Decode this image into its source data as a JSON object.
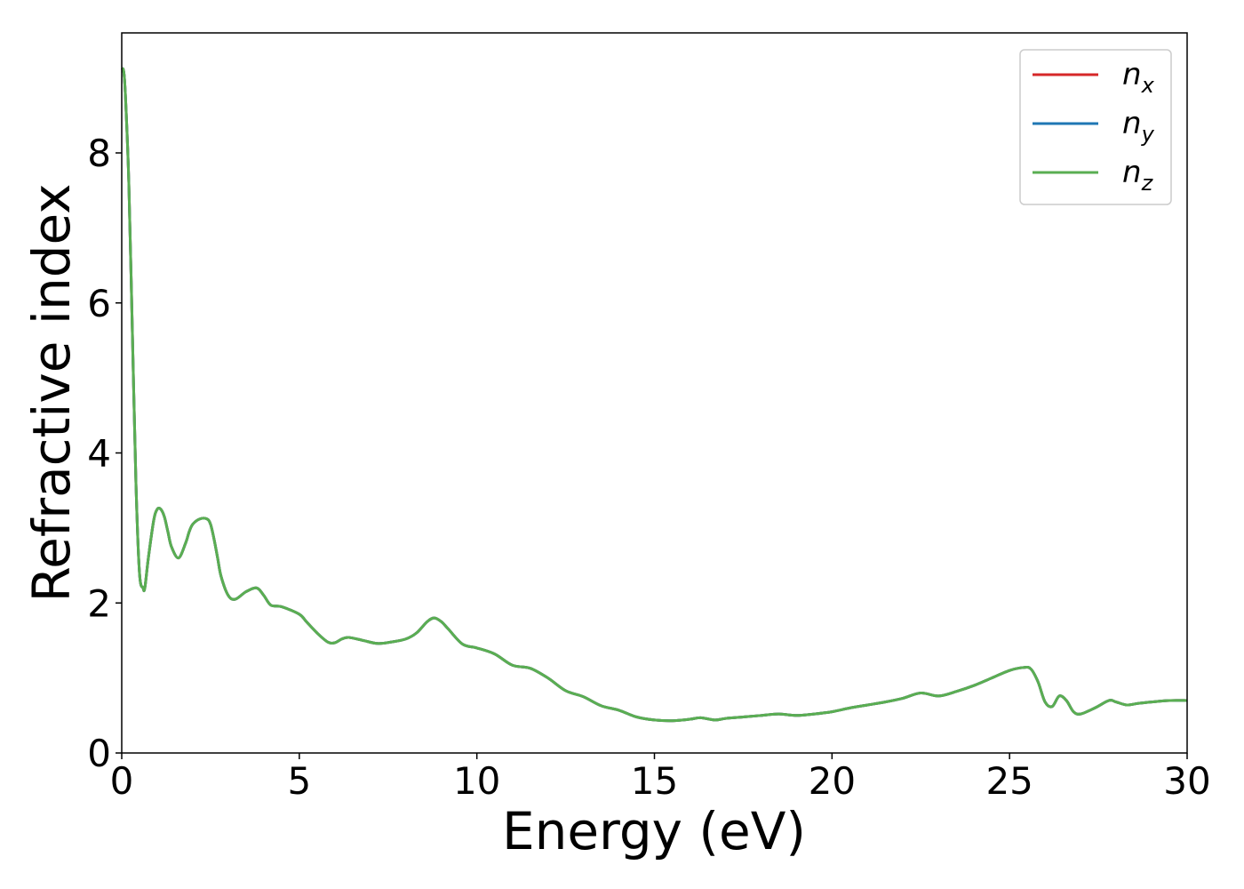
{
  "chart_data": {
    "type": "line",
    "xlabel": "Energy (eV)",
    "ylabel": "Refractive index",
    "xlim": [
      0,
      30
    ],
    "ylim": [
      0,
      9.6
    ],
    "xticks": [
      0,
      5,
      10,
      15,
      20,
      25,
      30
    ],
    "yticks": [
      0,
      2,
      4,
      6,
      8
    ],
    "grid": false,
    "legend_position": "top-right",
    "x": [
      0.0,
      0.05,
      0.1,
      0.2,
      0.3,
      0.4,
      0.5,
      0.6,
      0.65,
      0.75,
      0.9,
      1.0,
      1.1,
      1.2,
      1.3,
      1.4,
      1.6,
      1.8,
      1.9,
      2.0,
      2.2,
      2.4,
      2.5,
      2.6,
      2.7,
      2.8,
      3.0,
      3.2,
      3.5,
      3.8,
      4.0,
      4.2,
      4.5,
      5.0,
      5.2,
      5.5,
      5.8,
      6.0,
      6.2,
      6.4,
      6.8,
      7.2,
      7.6,
      8.0,
      8.3,
      8.6,
      8.8,
      9.0,
      9.2,
      9.6,
      10.0,
      10.5,
      11.0,
      11.5,
      12.0,
      12.5,
      13.0,
      13.5,
      14.0,
      14.5,
      15.0,
      15.5,
      16.0,
      16.3,
      16.7,
      17.0,
      17.5,
      18.0,
      18.5,
      19.0,
      19.5,
      20.0,
      20.5,
      21.0,
      21.5,
      22.0,
      22.5,
      23.0,
      23.5,
      24.0,
      24.5,
      25.0,
      25.4,
      25.6,
      25.8,
      26.0,
      26.2,
      26.4,
      26.6,
      26.8,
      27.0,
      27.4,
      27.8,
      28.0,
      28.3,
      28.6,
      29.0,
      29.5,
      30.0
    ],
    "series": [
      {
        "name": "n_x",
        "label_base": "n",
        "label_sub": "x",
        "color": "#d62728",
        "values": [
          9.1,
          9.1,
          8.8,
          7.6,
          5.6,
          3.6,
          2.4,
          2.2,
          2.2,
          2.6,
          3.1,
          3.25,
          3.25,
          3.15,
          2.95,
          2.75,
          2.6,
          2.8,
          2.95,
          3.05,
          3.12,
          3.12,
          3.05,
          2.85,
          2.6,
          2.35,
          2.1,
          2.05,
          2.15,
          2.2,
          2.1,
          1.97,
          1.95,
          1.85,
          1.75,
          1.6,
          1.48,
          1.47,
          1.52,
          1.54,
          1.5,
          1.46,
          1.48,
          1.52,
          1.6,
          1.75,
          1.8,
          1.75,
          1.65,
          1.45,
          1.4,
          1.32,
          1.17,
          1.13,
          1.0,
          0.83,
          0.75,
          0.63,
          0.57,
          0.48,
          0.44,
          0.43,
          0.45,
          0.47,
          0.44,
          0.46,
          0.48,
          0.5,
          0.52,
          0.5,
          0.52,
          0.55,
          0.6,
          0.64,
          0.68,
          0.73,
          0.8,
          0.76,
          0.82,
          0.9,
          1.0,
          1.1,
          1.14,
          1.12,
          0.95,
          0.68,
          0.62,
          0.76,
          0.7,
          0.55,
          0.52,
          0.6,
          0.7,
          0.68,
          0.64,
          0.66,
          0.68,
          0.7,
          0.7
        ]
      },
      {
        "name": "n_y",
        "label_base": "n",
        "label_sub": "y",
        "color": "#1f77b4",
        "values": [
          9.1,
          9.1,
          8.8,
          7.6,
          5.6,
          3.6,
          2.4,
          2.2,
          2.2,
          2.6,
          3.1,
          3.25,
          3.25,
          3.15,
          2.95,
          2.75,
          2.6,
          2.8,
          2.95,
          3.05,
          3.12,
          3.12,
          3.05,
          2.85,
          2.6,
          2.35,
          2.1,
          2.05,
          2.15,
          2.2,
          2.1,
          1.97,
          1.95,
          1.85,
          1.75,
          1.6,
          1.48,
          1.47,
          1.52,
          1.54,
          1.5,
          1.46,
          1.48,
          1.52,
          1.6,
          1.75,
          1.8,
          1.75,
          1.65,
          1.45,
          1.4,
          1.32,
          1.17,
          1.13,
          1.0,
          0.83,
          0.75,
          0.63,
          0.57,
          0.48,
          0.44,
          0.43,
          0.45,
          0.47,
          0.44,
          0.46,
          0.48,
          0.5,
          0.52,
          0.5,
          0.52,
          0.55,
          0.6,
          0.64,
          0.68,
          0.73,
          0.8,
          0.76,
          0.82,
          0.9,
          1.0,
          1.1,
          1.14,
          1.12,
          0.95,
          0.68,
          0.62,
          0.76,
          0.7,
          0.55,
          0.52,
          0.6,
          0.7,
          0.68,
          0.64,
          0.66,
          0.68,
          0.7,
          0.7
        ]
      },
      {
        "name": "n_z",
        "label_base": "n",
        "label_sub": "z",
        "color": "#5aae52",
        "values": [
          9.1,
          9.1,
          8.8,
          7.6,
          5.6,
          3.6,
          2.4,
          2.2,
          2.2,
          2.6,
          3.1,
          3.25,
          3.25,
          3.15,
          2.95,
          2.75,
          2.6,
          2.8,
          2.95,
          3.05,
          3.12,
          3.12,
          3.05,
          2.85,
          2.6,
          2.35,
          2.1,
          2.05,
          2.15,
          2.2,
          2.1,
          1.97,
          1.95,
          1.85,
          1.75,
          1.6,
          1.48,
          1.47,
          1.52,
          1.54,
          1.5,
          1.46,
          1.48,
          1.52,
          1.6,
          1.75,
          1.8,
          1.75,
          1.65,
          1.45,
          1.4,
          1.32,
          1.17,
          1.13,
          1.0,
          0.83,
          0.75,
          0.63,
          0.57,
          0.48,
          0.44,
          0.43,
          0.45,
          0.47,
          0.44,
          0.46,
          0.48,
          0.5,
          0.52,
          0.5,
          0.52,
          0.55,
          0.6,
          0.64,
          0.68,
          0.73,
          0.8,
          0.76,
          0.82,
          0.9,
          1.0,
          1.1,
          1.14,
          1.12,
          0.95,
          0.68,
          0.62,
          0.76,
          0.7,
          0.55,
          0.52,
          0.6,
          0.7,
          0.68,
          0.64,
          0.66,
          0.68,
          0.7,
          0.7
        ]
      }
    ]
  }
}
